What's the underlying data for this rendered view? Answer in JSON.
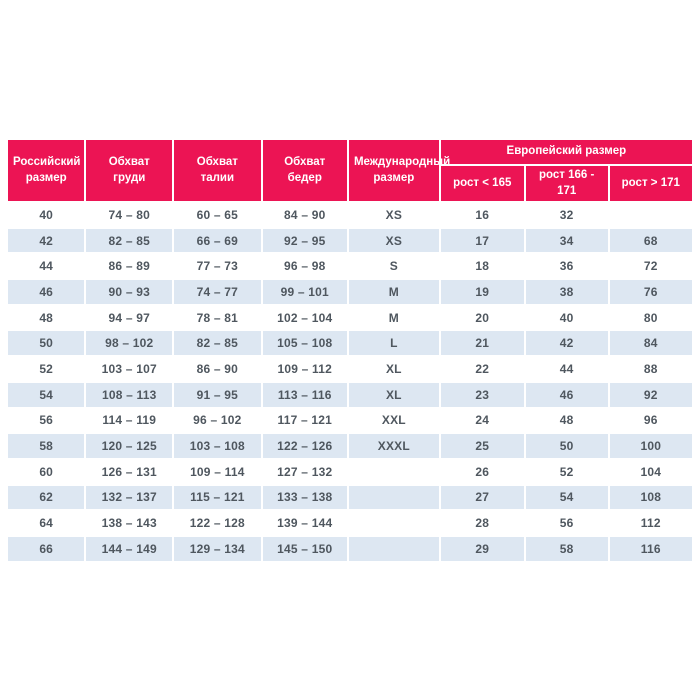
{
  "colors": {
    "header_bg": "#ec1454",
    "header_text": "#ffffff",
    "stripe_bg": "#dde7f2",
    "cell_text": "#4f575f",
    "row_bg": "#ffffff"
  },
  "table": {
    "headers": {
      "russian_size": "Российский размер",
      "chest": "Обхват груди",
      "waist": "Обхват талии",
      "hips": "Обхват бедер",
      "international": "Международный размер",
      "european_group": "Европейский размер",
      "height_under_165": "рост < 165",
      "height_166_171": "рост 166 - 171",
      "height_over_171": "рост > 171"
    },
    "rows": [
      [
        "40",
        "74 – 80",
        "60 – 65",
        "84 – 90",
        "XS",
        "16",
        "32",
        ""
      ],
      [
        "42",
        "82 – 85",
        "66 – 69",
        "92 – 95",
        "XS",
        "17",
        "34",
        "68"
      ],
      [
        "44",
        "86 – 89",
        "77 – 73",
        "96 – 98",
        "S",
        "18",
        "36",
        "72"
      ],
      [
        "46",
        "90 – 93",
        "74 – 77",
        "99 – 101",
        "M",
        "19",
        "38",
        "76"
      ],
      [
        "48",
        "94 – 97",
        "78 – 81",
        "102 – 104",
        "M",
        "20",
        "40",
        "80"
      ],
      [
        "50",
        "98 – 102",
        "82 – 85",
        "105 – 108",
        "L",
        "21",
        "42",
        "84"
      ],
      [
        "52",
        "103 – 107",
        "86 – 90",
        "109 – 112",
        "XL",
        "22",
        "44",
        "88"
      ],
      [
        "54",
        "108 – 113",
        "91 – 95",
        "113 – 116",
        "XL",
        "23",
        "46",
        "92"
      ],
      [
        "56",
        "114 – 119",
        "96 – 102",
        "117 – 121",
        "XXL",
        "24",
        "48",
        "96"
      ],
      [
        "58",
        "120 – 125",
        "103 – 108",
        "122 – 126",
        "XXXL",
        "25",
        "50",
        "100"
      ],
      [
        "60",
        "126 – 131",
        "109 – 114",
        "127 – 132",
        "",
        "26",
        "52",
        "104"
      ],
      [
        "62",
        "132 – 137",
        "115 – 121",
        "133 – 138",
        "",
        "27",
        "54",
        "108"
      ],
      [
        "64",
        "138 – 143",
        "122 – 128",
        "139 – 144",
        "",
        "28",
        "56",
        "112"
      ],
      [
        "66",
        "144 – 149",
        "129 – 134",
        "145 – 150",
        "",
        "29",
        "58",
        "116"
      ]
    ]
  },
  "chart_data": {
    "type": "table",
    "title": "",
    "columns": [
      "Российский размер",
      "Обхват груди",
      "Обхват талии",
      "Обхват бедер",
      "Международный размер",
      "Европейский размер — рост < 165",
      "Европейский размер — рост 166 - 171",
      "Европейский размер — рост > 171"
    ],
    "rows": [
      [
        "40",
        "74 – 80",
        "60 – 65",
        "84 – 90",
        "XS",
        "16",
        "32",
        ""
      ],
      [
        "42",
        "82 – 85",
        "66 – 69",
        "92 – 95",
        "XS",
        "17",
        "34",
        "68"
      ],
      [
        "44",
        "86 – 89",
        "77 – 73",
        "96 – 98",
        "S",
        "18",
        "36",
        "72"
      ],
      [
        "46",
        "90 – 93",
        "74 – 77",
        "99 – 101",
        "M",
        "19",
        "38",
        "76"
      ],
      [
        "48",
        "94 – 97",
        "78 – 81",
        "102 – 104",
        "M",
        "20",
        "40",
        "80"
      ],
      [
        "50",
        "98 – 102",
        "82 – 85",
        "105 – 108",
        "L",
        "21",
        "42",
        "84"
      ],
      [
        "52",
        "103 – 107",
        "86 – 90",
        "109 – 112",
        "XL",
        "22",
        "44",
        "88"
      ],
      [
        "54",
        "108 – 113",
        "91 – 95",
        "113 – 116",
        "XL",
        "23",
        "46",
        "92"
      ],
      [
        "56",
        "114 – 119",
        "96 – 102",
        "117 – 121",
        "XXL",
        "24",
        "48",
        "96"
      ],
      [
        "58",
        "120 – 125",
        "103 – 108",
        "122 – 126",
        "XXXL",
        "25",
        "50",
        "100"
      ],
      [
        "60",
        "126 – 131",
        "109 – 114",
        "127 – 132",
        "",
        "26",
        "52",
        "104"
      ],
      [
        "62",
        "132 – 137",
        "115 – 121",
        "133 – 138",
        "",
        "27",
        "54",
        "108"
      ],
      [
        "64",
        "138 – 143",
        "122 – 128",
        "139 – 144",
        "",
        "28",
        "56",
        "112"
      ],
      [
        "66",
        "144 – 149",
        "129 – 134",
        "145 – 150",
        "",
        "29",
        "58",
        "116"
      ]
    ]
  }
}
